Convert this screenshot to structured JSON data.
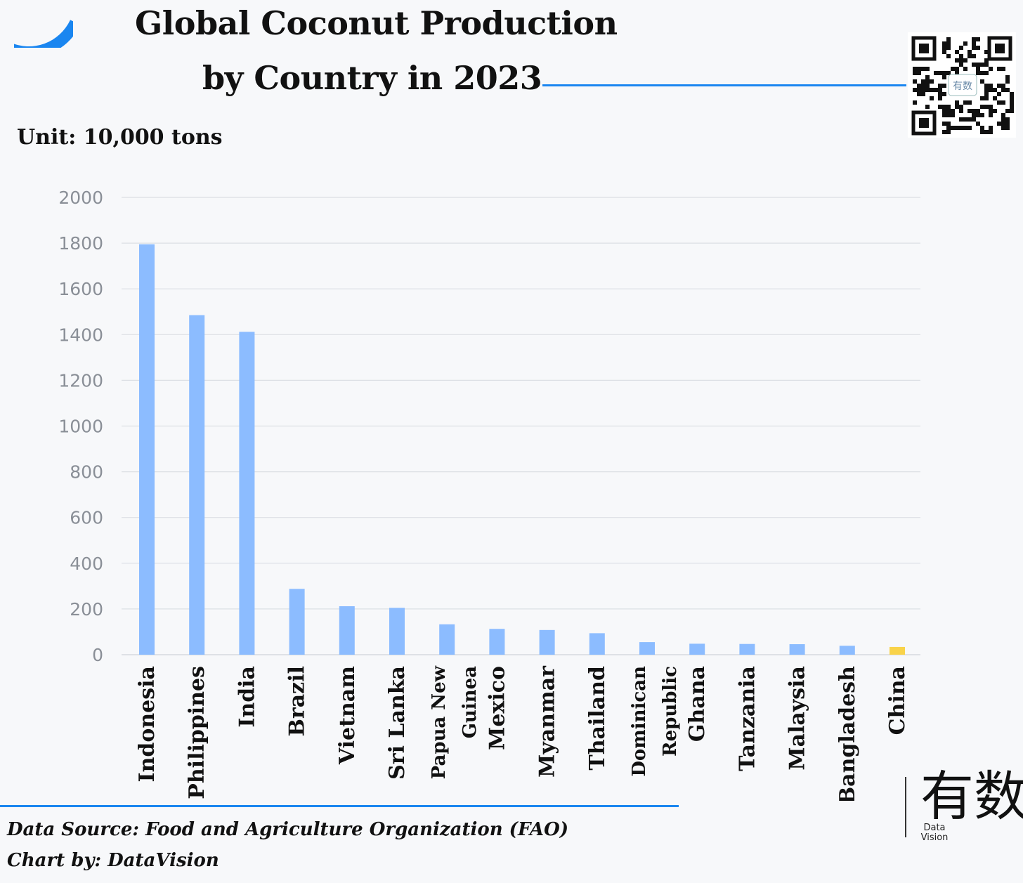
{
  "header": {
    "title_line1": "Global Coconut Production",
    "title_line2": "by Country in 2023",
    "unit": "Unit: 10,000 tons"
  },
  "footer": {
    "source": "Data Source: Food and Agriculture Organization (FAO)",
    "credit": "Chart by: DataVision"
  },
  "logo": {
    "text": "有数",
    "sub_line1": "Data",
    "sub_line2": "Vision"
  },
  "qr": {
    "caption": "有数"
  },
  "colors": {
    "accent": "#1a86f0",
    "bar": "#8cbcff",
    "highlight": "#f9d34a",
    "grid": "#dcdfe4"
  },
  "chart_data": {
    "type": "bar",
    "title": "Global Coconut Production by Country in 2023",
    "ylabel": "Unit: 10,000 tons",
    "ylim": [
      0,
      2000
    ],
    "yticks": [
      0,
      200,
      400,
      600,
      800,
      1000,
      1200,
      1400,
      1600,
      1800,
      2000
    ],
    "grid": true,
    "categories": [
      [
        "Indonesia"
      ],
      [
        "Philippines"
      ],
      [
        "India"
      ],
      [
        "Brazil"
      ],
      [
        "Vietnam"
      ],
      [
        "Sri Lanka"
      ],
      [
        "Papua New",
        "Guinea"
      ],
      [
        "Mexico"
      ],
      [
        "Myanmar"
      ],
      [
        "Thailand"
      ],
      [
        "Dominican",
        "Republic"
      ],
      [
        "Ghana"
      ],
      [
        "Tanzania"
      ],
      [
        "Malaysia"
      ],
      [
        "Bangladesh"
      ],
      [
        "China"
      ]
    ],
    "values": [
      1795,
      1485,
      1412,
      288,
      212,
      205,
      133,
      113,
      108,
      94,
      55,
      48,
      47,
      46,
      39,
      34
    ],
    "highlight_category": "China"
  }
}
